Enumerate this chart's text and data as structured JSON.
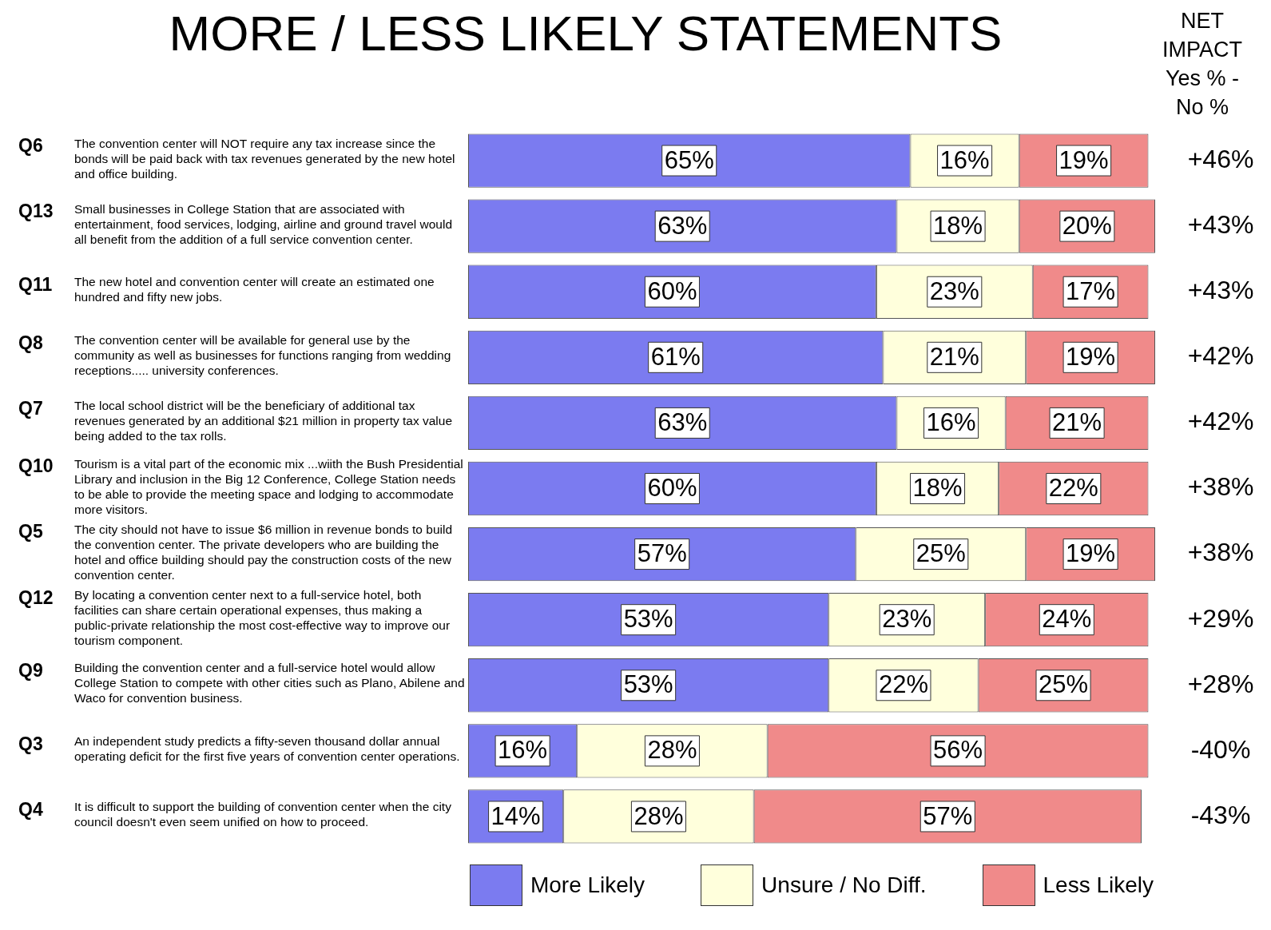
{
  "chart_data": {
    "type": "bar",
    "orientation": "horizontal",
    "stacked": true,
    "title": "MORE / LESS LIKELY STATEMENTS",
    "categories": [
      "Q6",
      "Q13",
      "Q11",
      "Q8",
      "Q7",
      "Q10",
      "Q5",
      "Q12",
      "Q9",
      "Q3",
      "Q4"
    ],
    "series": [
      {
        "name": "More Likely",
        "color": "#7b7bf0",
        "values": [
          65,
          63,
          60,
          61,
          63,
          60,
          57,
          53,
          53,
          16,
          14
        ],
        "value_labels": [
          "65%",
          "63%",
          "60%",
          "61%",
          "63%",
          "60%",
          "57%",
          "53%",
          "53%",
          "16%",
          "14%"
        ]
      },
      {
        "name": "Unsure / No Diff.",
        "color": "#ffffdc",
        "values": [
          16,
          18,
          23,
          21,
          16,
          18,
          25,
          23,
          22,
          28,
          28
        ],
        "value_labels": [
          "16%",
          "18%",
          "23%",
          "21%",
          "16%",
          "18%",
          "25%",
          "23%",
          "22%",
          "28%",
          "28%"
        ]
      },
      {
        "name": "Less Likely",
        "color": "#f08a8a",
        "values": [
          19,
          20,
          17,
          19,
          21,
          22,
          19,
          24,
          25,
          56,
          57
        ],
        "value_labels": [
          "19%",
          "20%",
          "17%",
          "19%",
          "21%",
          "22%",
          "19%",
          "24%",
          "25%",
          "56%",
          "57%"
        ]
      }
    ],
    "annotations": [
      "NET IMPACT Yes % - No %",
      "The convention center will NOT require any tax increase since the bonds will be paid back with tax revenues generated by the new hotel and office building.",
      "Small businesses in College Station that are associated with entertainment, food services, lodging, airline and ground travel would all benefit from the addition of a full service convention center.",
      "The new hotel and convention center will create an estimated one hundred and fifty new jobs.",
      "The convention center will be available for general use by the community as well as businesses for functions ranging from wedding receptions..... university conferences.",
      "The local school district will be the beneficiary of additional tax revenues generated by an additional $21 million in property tax value being added to the tax rolls.",
      "Tourism is a vital part of the economic mix ...wiith the Bush Presidential Library and inclusion in the Big 12 Conference, College Station needs to be able to provide the meeting space and lodging to accommodate more visitors.",
      "The city should not have to issue $6 million in revenue bonds to build the convention center. The private developers who are building the hotel and office building should pay the construction costs of the new convention center.",
      "By locating a convention center next to a full-service hotel, both facilities can share certain operational expenses, thus making a public-private relationship the most cost-effective way to improve our tourism component.",
      "Building the convention center and a full-service hotel would allow College Station to compete with other cities such as Plano, Abilene and Waco for convention business.",
      "An independent study predicts a fifty-seven thousand dollar annual operating deficit for the first five years of convention center operations.",
      "It is difficult to support the building of convention center when the city council doesn't even seem unified on how to proceed.",
      "+46%",
      "+43%",
      "+43%",
      "+42%",
      "+42%",
      "+38%",
      "+38%",
      "+29%",
      "+28%",
      "-40%",
      "-43%"
    ],
    "legend": "bottom"
  }
}
